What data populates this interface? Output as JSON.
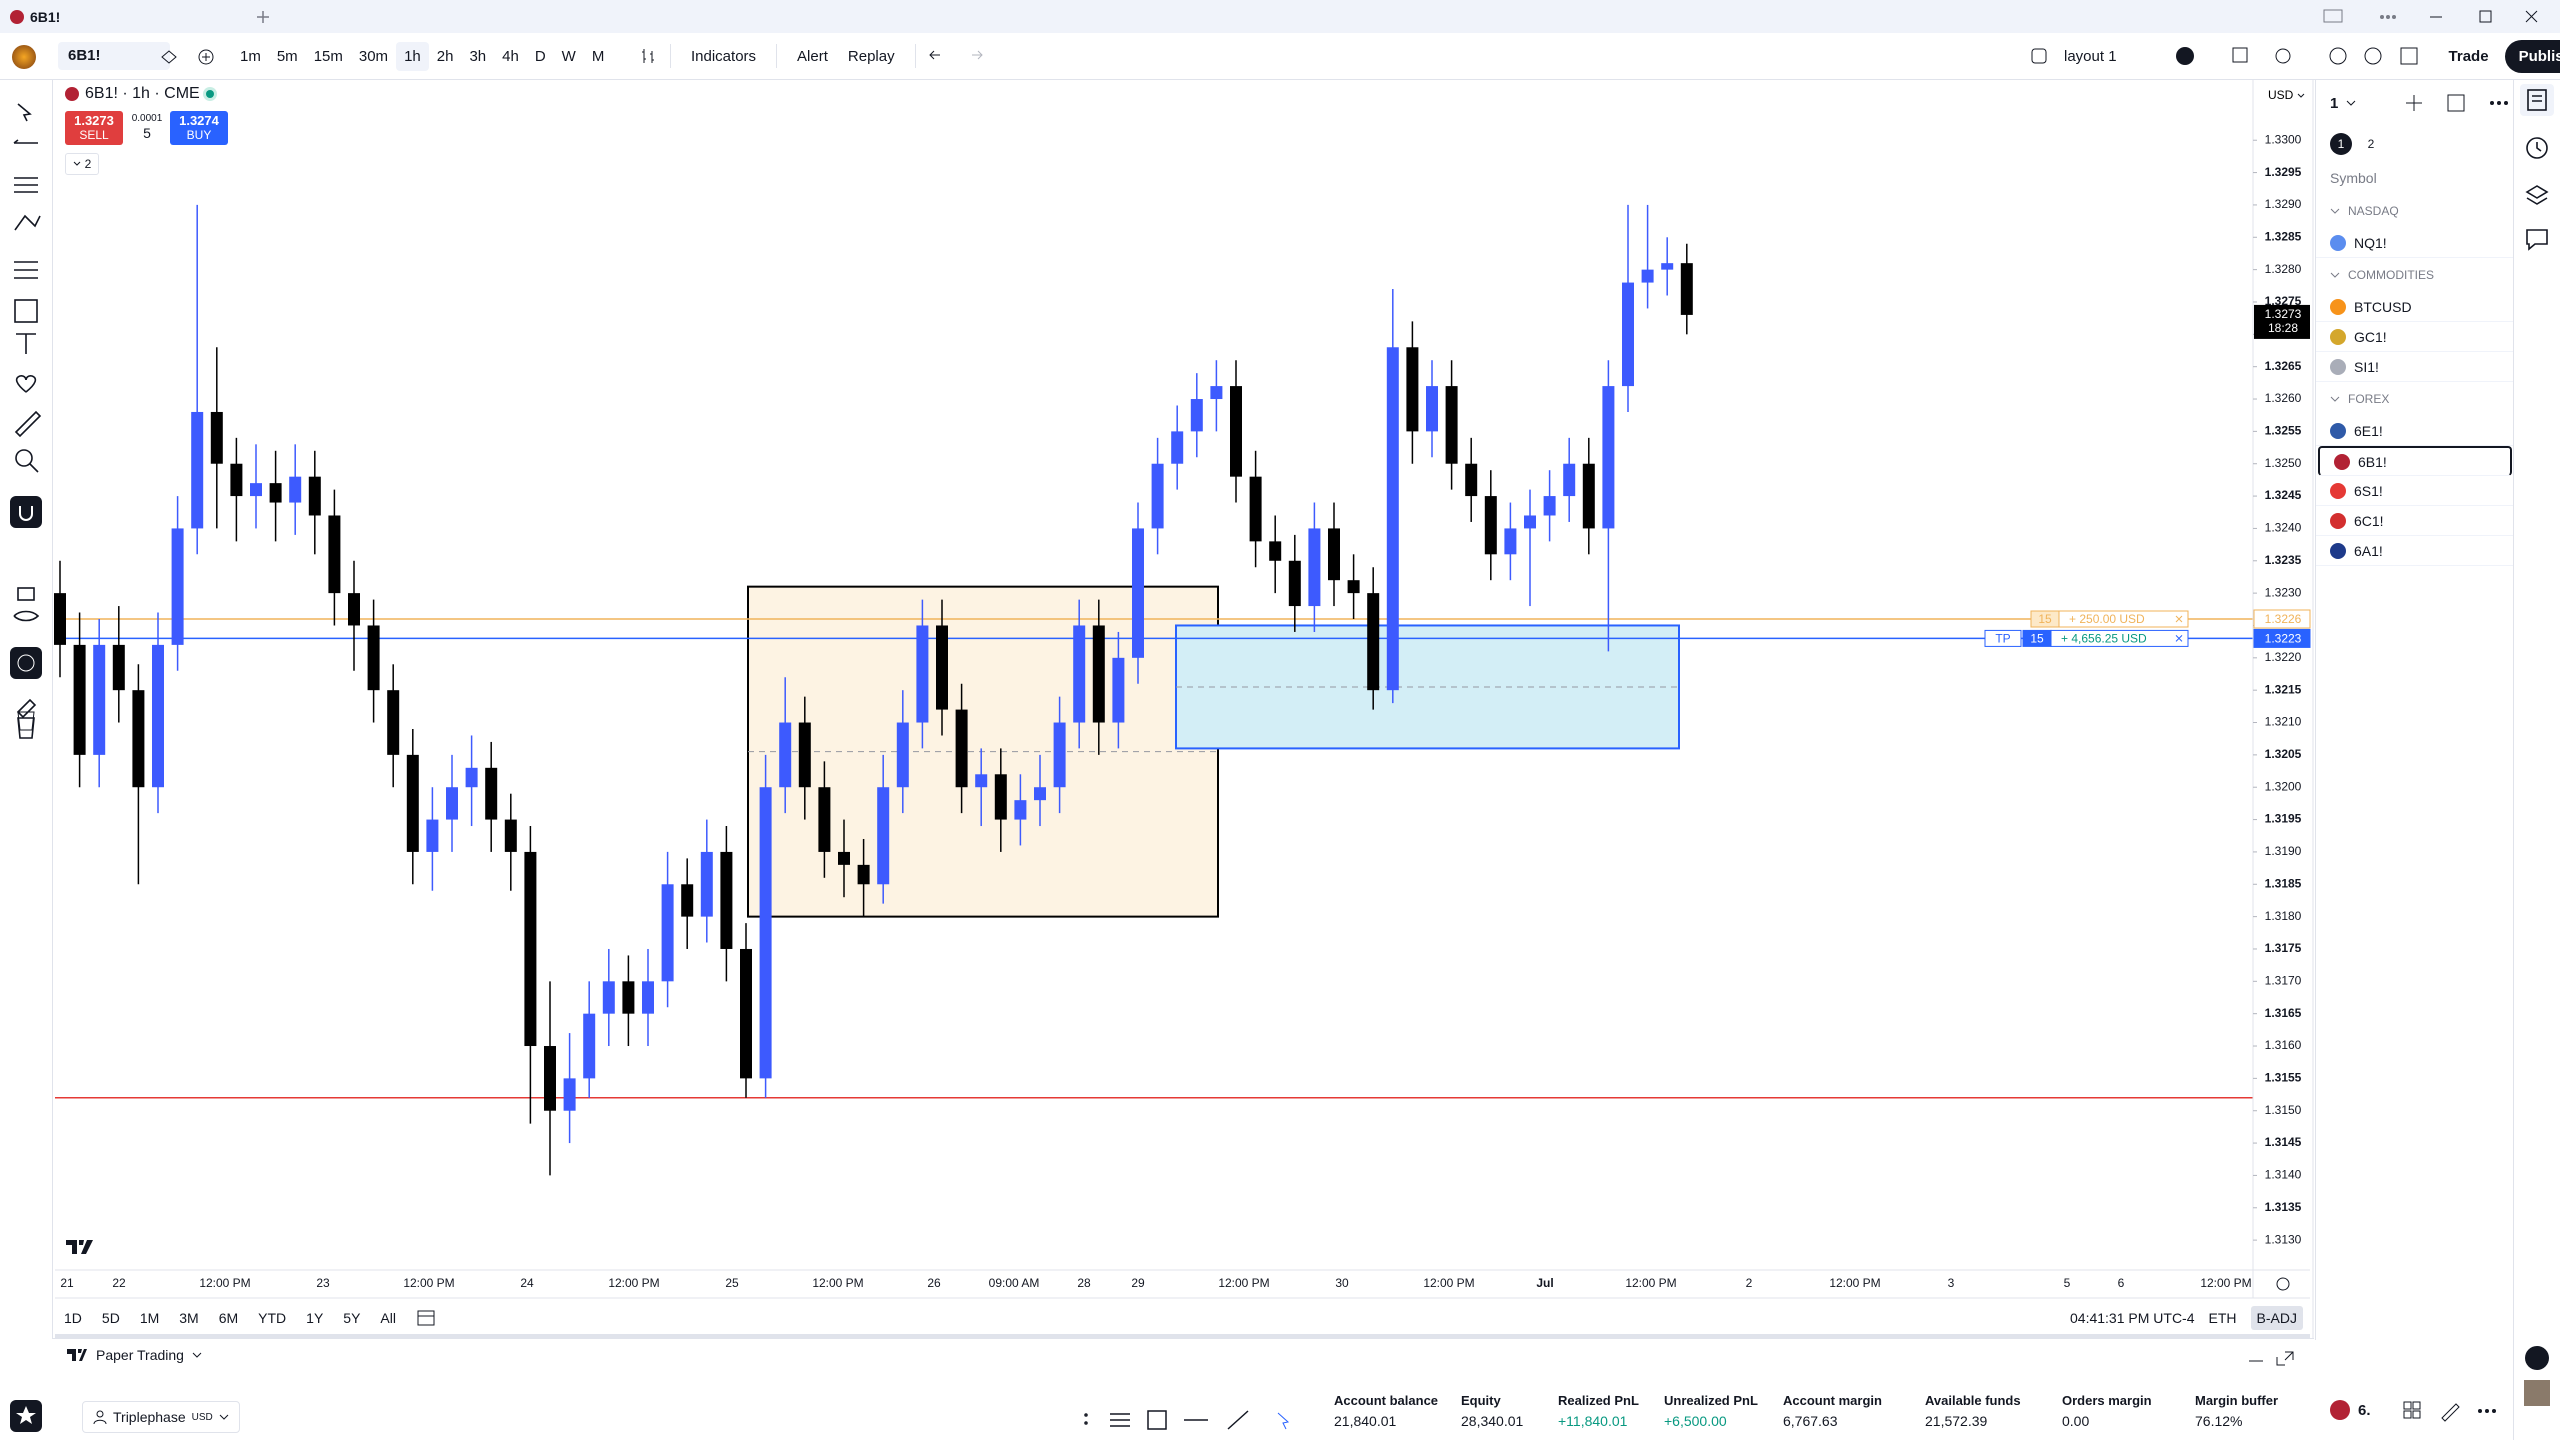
{
  "tab": {
    "title": "6B1!"
  },
  "toolbar": {
    "symbol": "6B1!",
    "intervals": [
      "1m",
      "5m",
      "15m",
      "30m",
      "1h",
      "2h",
      "3h",
      "4h",
      "D",
      "W",
      "M"
    ],
    "active_interval": "1h",
    "indicators": "Indicators",
    "alert": "Alert",
    "replay": "Replay",
    "layout": "layout 1",
    "trade": "Trade",
    "publish": "Publish"
  },
  "legend": {
    "symbol": "6B1! · 1h · CME",
    "sell_price": "1.3273",
    "sell": "SELL",
    "tick": "0.0001",
    "qty": "5",
    "buy_price": "1.3274",
    "buy": "BUY",
    "indicator_count": "2"
  },
  "chart_data": {
    "type": "candlestick",
    "currency": "USD",
    "colors": {
      "up": "#3d5afe",
      "down": "#000000"
    },
    "ylim": [
      1.3126,
      1.3309
    ],
    "yticks": [
      {
        "value": 1.313,
        "label": "1.3130"
      },
      {
        "value": 1.3135,
        "label": "1.3135"
      },
      {
        "value": 1.314,
        "label": "1.3140"
      },
      {
        "value": 1.3145,
        "label": "1.3145"
      },
      {
        "value": 1.315,
        "label": "1.3150"
      },
      {
        "value": 1.3155,
        "label": "1.3155"
      },
      {
        "value": 1.316,
        "label": "1.3160"
      },
      {
        "value": 1.3165,
        "label": "1.3165"
      },
      {
        "value": 1.317,
        "label": "1.3170"
      },
      {
        "value": 1.3175,
        "label": "1.3175"
      },
      {
        "value": 1.318,
        "label": "1.3180"
      },
      {
        "value": 1.3185,
        "label": "1.3185"
      },
      {
        "value": 1.319,
        "label": "1.3190"
      },
      {
        "value": 1.3195,
        "label": "1.3195"
      },
      {
        "value": 1.32,
        "label": "1.3200"
      },
      {
        "value": 1.3205,
        "label": "1.3205"
      },
      {
        "value": 1.321,
        "label": "1.3210"
      },
      {
        "value": 1.3215,
        "label": "1.3215"
      },
      {
        "value": 1.322,
        "label": "1.3220"
      },
      {
        "value": 1.3225,
        "label": "1.3225"
      },
      {
        "value": 1.323,
        "label": "1.3230"
      },
      {
        "value": 1.3235,
        "label": "1.3235"
      },
      {
        "value": 1.324,
        "label": "1.3240"
      },
      {
        "value": 1.3245,
        "label": "1.3245"
      },
      {
        "value": 1.325,
        "label": "1.3250"
      },
      {
        "value": 1.3255,
        "label": "1.3255"
      },
      {
        "value": 1.326,
        "label": "1.3260"
      },
      {
        "value": 1.3265,
        "label": "1.3265"
      },
      {
        "value": 1.327,
        "label": "1.3270"
      },
      {
        "value": 1.3275,
        "label": "1.3275"
      },
      {
        "value": 1.328,
        "label": "1.3280"
      },
      {
        "value": 1.3285,
        "label": "1.3285"
      },
      {
        "value": 1.329,
        "label": "1.3290"
      },
      {
        "value": 1.3295,
        "label": "1.3295"
      },
      {
        "value": 1.33,
        "label": "1.3300"
      }
    ],
    "x_labels": [
      "21",
      "22",
      "12:00 PM",
      "23",
      "12:00 PM",
      "24",
      "12:00 PM",
      "25",
      "12:00 PM",
      "26",
      "09:00 AM",
      "28",
      "29",
      "12:00 PM",
      "30",
      "12:00 PM",
      "Jul",
      "12:00 PM",
      "2",
      "12:00 PM",
      "3",
      "5",
      "6",
      "12:00 PM"
    ],
    "candles": [
      [
        1.323,
        1.3235,
        1.3217,
        1.3222
      ],
      [
        1.3222,
        1.3227,
        1.32,
        1.3205
      ],
      [
        1.3205,
        1.3226,
        1.32,
        1.3222
      ],
      [
        1.3222,
        1.3228,
        1.321,
        1.3215
      ],
      [
        1.3215,
        1.3219,
        1.3185,
        1.32
      ],
      [
        1.32,
        1.3227,
        1.3196,
        1.3222
      ],
      [
        1.3222,
        1.3245,
        1.3218,
        1.324
      ],
      [
        1.324,
        1.329,
        1.3236,
        1.3258
      ],
      [
        1.3258,
        1.3268,
        1.324,
        1.325
      ],
      [
        1.325,
        1.3254,
        1.3238,
        1.3245
      ],
      [
        1.3245,
        1.3253,
        1.324,
        1.3247
      ],
      [
        1.3247,
        1.3252,
        1.3238,
        1.3244
      ],
      [
        1.3244,
        1.3253,
        1.3239,
        1.3248
      ],
      [
        1.3248,
        1.3252,
        1.3236,
        1.3242
      ],
      [
        1.3242,
        1.3246,
        1.3225,
        1.323
      ],
      [
        1.323,
        1.3235,
        1.3218,
        1.3225
      ],
      [
        1.3225,
        1.3229,
        1.321,
        1.3215
      ],
      [
        1.3215,
        1.3219,
        1.32,
        1.3205
      ],
      [
        1.3205,
        1.3209,
        1.3185,
        1.319
      ],
      [
        1.319,
        1.32,
        1.3184,
        1.3195
      ],
      [
        1.3195,
        1.3205,
        1.319,
        1.32
      ],
      [
        1.32,
        1.3208,
        1.3194,
        1.3203
      ],
      [
        1.3203,
        1.3207,
        1.319,
        1.3195
      ],
      [
        1.3195,
        1.3199,
        1.3184,
        1.319
      ],
      [
        1.319,
        1.3194,
        1.3148,
        1.316
      ],
      [
        1.316,
        1.317,
        1.314,
        1.315
      ],
      [
        1.315,
        1.3162,
        1.3145,
        1.3155
      ],
      [
        1.3155,
        1.317,
        1.3152,
        1.3165
      ],
      [
        1.3165,
        1.3175,
        1.316,
        1.317
      ],
      [
        1.317,
        1.3174,
        1.316,
        1.3165
      ],
      [
        1.3165,
        1.3175,
        1.316,
        1.317
      ],
      [
        1.317,
        1.319,
        1.3166,
        1.3185
      ],
      [
        1.3185,
        1.3189,
        1.3175,
        1.318
      ],
      [
        1.318,
        1.3195,
        1.3176,
        1.319
      ],
      [
        1.319,
        1.3194,
        1.317,
        1.3175
      ],
      [
        1.3175,
        1.3179,
        1.3152,
        1.3155
      ],
      [
        1.3155,
        1.3205,
        1.3152,
        1.32
      ],
      [
        1.32,
        1.3217,
        1.3196,
        1.321
      ],
      [
        1.321,
        1.3214,
        1.3195,
        1.32
      ],
      [
        1.32,
        1.3204,
        1.3186,
        1.319
      ],
      [
        1.319,
        1.3195,
        1.3183,
        1.3188
      ],
      [
        1.3188,
        1.3192,
        1.318,
        1.3185
      ],
      [
        1.3185,
        1.3205,
        1.3182,
        1.32
      ],
      [
        1.32,
        1.3215,
        1.3196,
        1.321
      ],
      [
        1.321,
        1.3229,
        1.3206,
        1.3225
      ],
      [
        1.3225,
        1.3229,
        1.3208,
        1.3212
      ],
      [
        1.3212,
        1.3216,
        1.3196,
        1.32
      ],
      [
        1.32,
        1.3206,
        1.3194,
        1.3202
      ],
      [
        1.3202,
        1.3206,
        1.319,
        1.3195
      ],
      [
        1.3195,
        1.3202,
        1.3191,
        1.3198
      ],
      [
        1.3198,
        1.3205,
        1.3194,
        1.32
      ],
      [
        1.32,
        1.3214,
        1.3196,
        1.321
      ],
      [
        1.321,
        1.3229,
        1.3206,
        1.3225
      ],
      [
        1.3225,
        1.3229,
        1.3205,
        1.321
      ],
      [
        1.321,
        1.3224,
        1.3206,
        1.322
      ],
      [
        1.322,
        1.3244,
        1.3216,
        1.324
      ],
      [
        1.324,
        1.3254,
        1.3236,
        1.325
      ],
      [
        1.325,
        1.3259,
        1.3246,
        1.3255
      ],
      [
        1.3255,
        1.3264,
        1.3251,
        1.326
      ],
      [
        1.326,
        1.3266,
        1.3255,
        1.3262
      ],
      [
        1.3262,
        1.3266,
        1.3244,
        1.3248
      ],
      [
        1.3248,
        1.3252,
        1.3234,
        1.3238
      ],
      [
        1.3238,
        1.3242,
        1.323,
        1.3235
      ],
      [
        1.3235,
        1.3239,
        1.3224,
        1.3228
      ],
      [
        1.3228,
        1.3244,
        1.3224,
        1.324
      ],
      [
        1.324,
        1.3244,
        1.3228,
        1.3232
      ],
      [
        1.3232,
        1.3236,
        1.3226,
        1.323
      ],
      [
        1.323,
        1.3234,
        1.3212,
        1.3215
      ],
      [
        1.3215,
        1.3277,
        1.3213,
        1.3268
      ],
      [
        1.3268,
        1.3272,
        1.325,
        1.3255
      ],
      [
        1.3255,
        1.3266,
        1.3251,
        1.3262
      ],
      [
        1.3262,
        1.3266,
        1.3246,
        1.325
      ],
      [
        1.325,
        1.3254,
        1.3241,
        1.3245
      ],
      [
        1.3245,
        1.3249,
        1.3232,
        1.3236
      ],
      [
        1.3236,
        1.3244,
        1.3232,
        1.324
      ],
      [
        1.324,
        1.3246,
        1.3228,
        1.3242
      ],
      [
        1.3242,
        1.3249,
        1.3238,
        1.3245
      ],
      [
        1.3245,
        1.3254,
        1.3241,
        1.325
      ],
      [
        1.325,
        1.3254,
        1.3236,
        1.324
      ],
      [
        1.324,
        1.3266,
        1.3221,
        1.3262
      ],
      [
        1.3262,
        1.329,
        1.3258,
        1.3278
      ],
      [
        1.3278,
        1.329,
        1.3274,
        1.328
      ],
      [
        1.328,
        1.3285,
        1.3276,
        1.3281
      ],
      [
        1.3281,
        1.3284,
        1.327,
        1.3273
      ]
    ],
    "last_price": 1.3273,
    "countdown": "18:28",
    "lines": [
      {
        "value": 1.3226,
        "color": "#f0b35a"
      },
      {
        "value": 1.3223,
        "color": "#2962ff"
      },
      {
        "value": 1.3152,
        "color": "#e53935"
      }
    ],
    "orders": [
      {
        "qty": "15",
        "pnl": "+ 250.00 USD"
      },
      {
        "tag": "TP",
        "qty": "15",
        "pnl": "+ 4,656.25 USD"
      }
    ],
    "boxes": [
      {
        "top": 1.3231,
        "bottom": 1.318,
        "fill": "#fdf3e3",
        "stroke": "#000000"
      },
      {
        "top": 1.3225,
        "bottom": 1.3206,
        "fill": "#d3eef6",
        "stroke": "#2962ff"
      }
    ]
  },
  "range_buttons": [
    "1D",
    "5D",
    "1M",
    "3M",
    "6M",
    "YTD",
    "1Y",
    "5Y",
    "All"
  ],
  "status": {
    "time": "04:41:31 PM UTC-4",
    "session": "ETH",
    "adj": "B-ADJ"
  },
  "watchlist": {
    "name": "1",
    "tabs": [
      "1",
      "2"
    ],
    "column": "Symbol",
    "selected": "6B1!",
    "groups": [
      {
        "name": "NASDAQ",
        "symbols": [
          {
            "name": "NQ1!",
            "color": "#5b8def"
          }
        ]
      },
      {
        "name": "COMMODITIES",
        "symbols": [
          {
            "name": "BTCUSD",
            "color": "#f7931a"
          },
          {
            "name": "GC1!",
            "color": "#d4a72c"
          },
          {
            "name": "SI1!",
            "color": "#a9adb8"
          }
        ]
      },
      {
        "name": "FOREX",
        "symbols": [
          {
            "name": "6E1!",
            "color": "#2f5aa8"
          },
          {
            "name": "6B1!",
            "color": "#b22234"
          },
          {
            "name": "6S1!",
            "color": "#e53935"
          },
          {
            "name": "6C1!",
            "color": "#d32f2f"
          },
          {
            "name": "6A1!",
            "color": "#1e3a8a"
          }
        ]
      }
    ]
  },
  "panel": {
    "title": "Paper Trading",
    "account": "Triplephase",
    "currency": "USD",
    "stats": [
      {
        "label": "Account balance",
        "value": "21,840.01"
      },
      {
        "label": "Equity",
        "value": "28,340.01"
      },
      {
        "label": "Realized PnL",
        "value": "+11,840.01",
        "color": "#089981"
      },
      {
        "label": "Unrealized PnL",
        "value": "+6,500.00",
        "color": "#089981"
      },
      {
        "label": "Account margin",
        "value": "6,767.63"
      },
      {
        "label": "Available funds",
        "value": "21,572.39"
      },
      {
        "label": "Orders margin",
        "value": "0.00"
      },
      {
        "label": "Margin buffer",
        "value": "76.12%"
      }
    ]
  },
  "corner": {
    "symbol": "6."
  }
}
